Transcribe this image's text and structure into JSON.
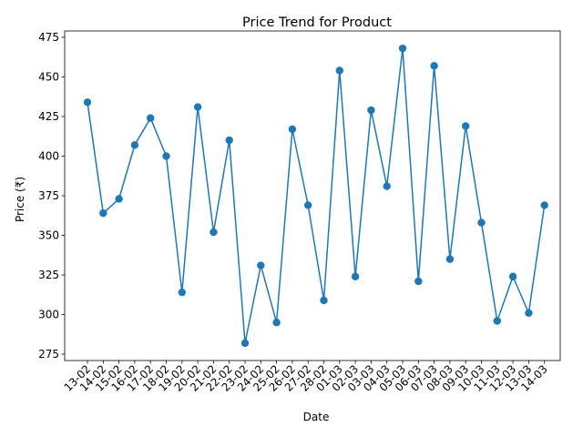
{
  "chart_data": {
    "type": "line",
    "title": "Price Trend for Product",
    "xlabel": "Date",
    "ylabel": "Price (₹)",
    "categories": [
      "13-02",
      "14-02",
      "15-02",
      "16-02",
      "17-02",
      "18-02",
      "19-02",
      "20-02",
      "21-02",
      "22-02",
      "23-02",
      "24-02",
      "25-02",
      "26-02",
      "27-02",
      "28-02",
      "01-03",
      "02-03",
      "03-03",
      "04-03",
      "05-03",
      "06-03",
      "07-03",
      "08-03",
      "09-03",
      "10-03",
      "11-03",
      "12-03",
      "13-03",
      "14-03"
    ],
    "series": [
      {
        "values": [
          434,
          364,
          373,
          407,
          424,
          400,
          314,
          431,
          352,
          410,
          282,
          331,
          295,
          417,
          369,
          309,
          454,
          324,
          429,
          381,
          468,
          321,
          457,
          335,
          419,
          358,
          296,
          324,
          301,
          369
        ],
        "color": "#1f77b4",
        "marker": "circle"
      }
    ],
    "ylim": [
      271,
      479
    ],
    "yticks": [
      275,
      300,
      325,
      350,
      375,
      400,
      425,
      450,
      475
    ],
    "grid": false,
    "legend": "none"
  }
}
